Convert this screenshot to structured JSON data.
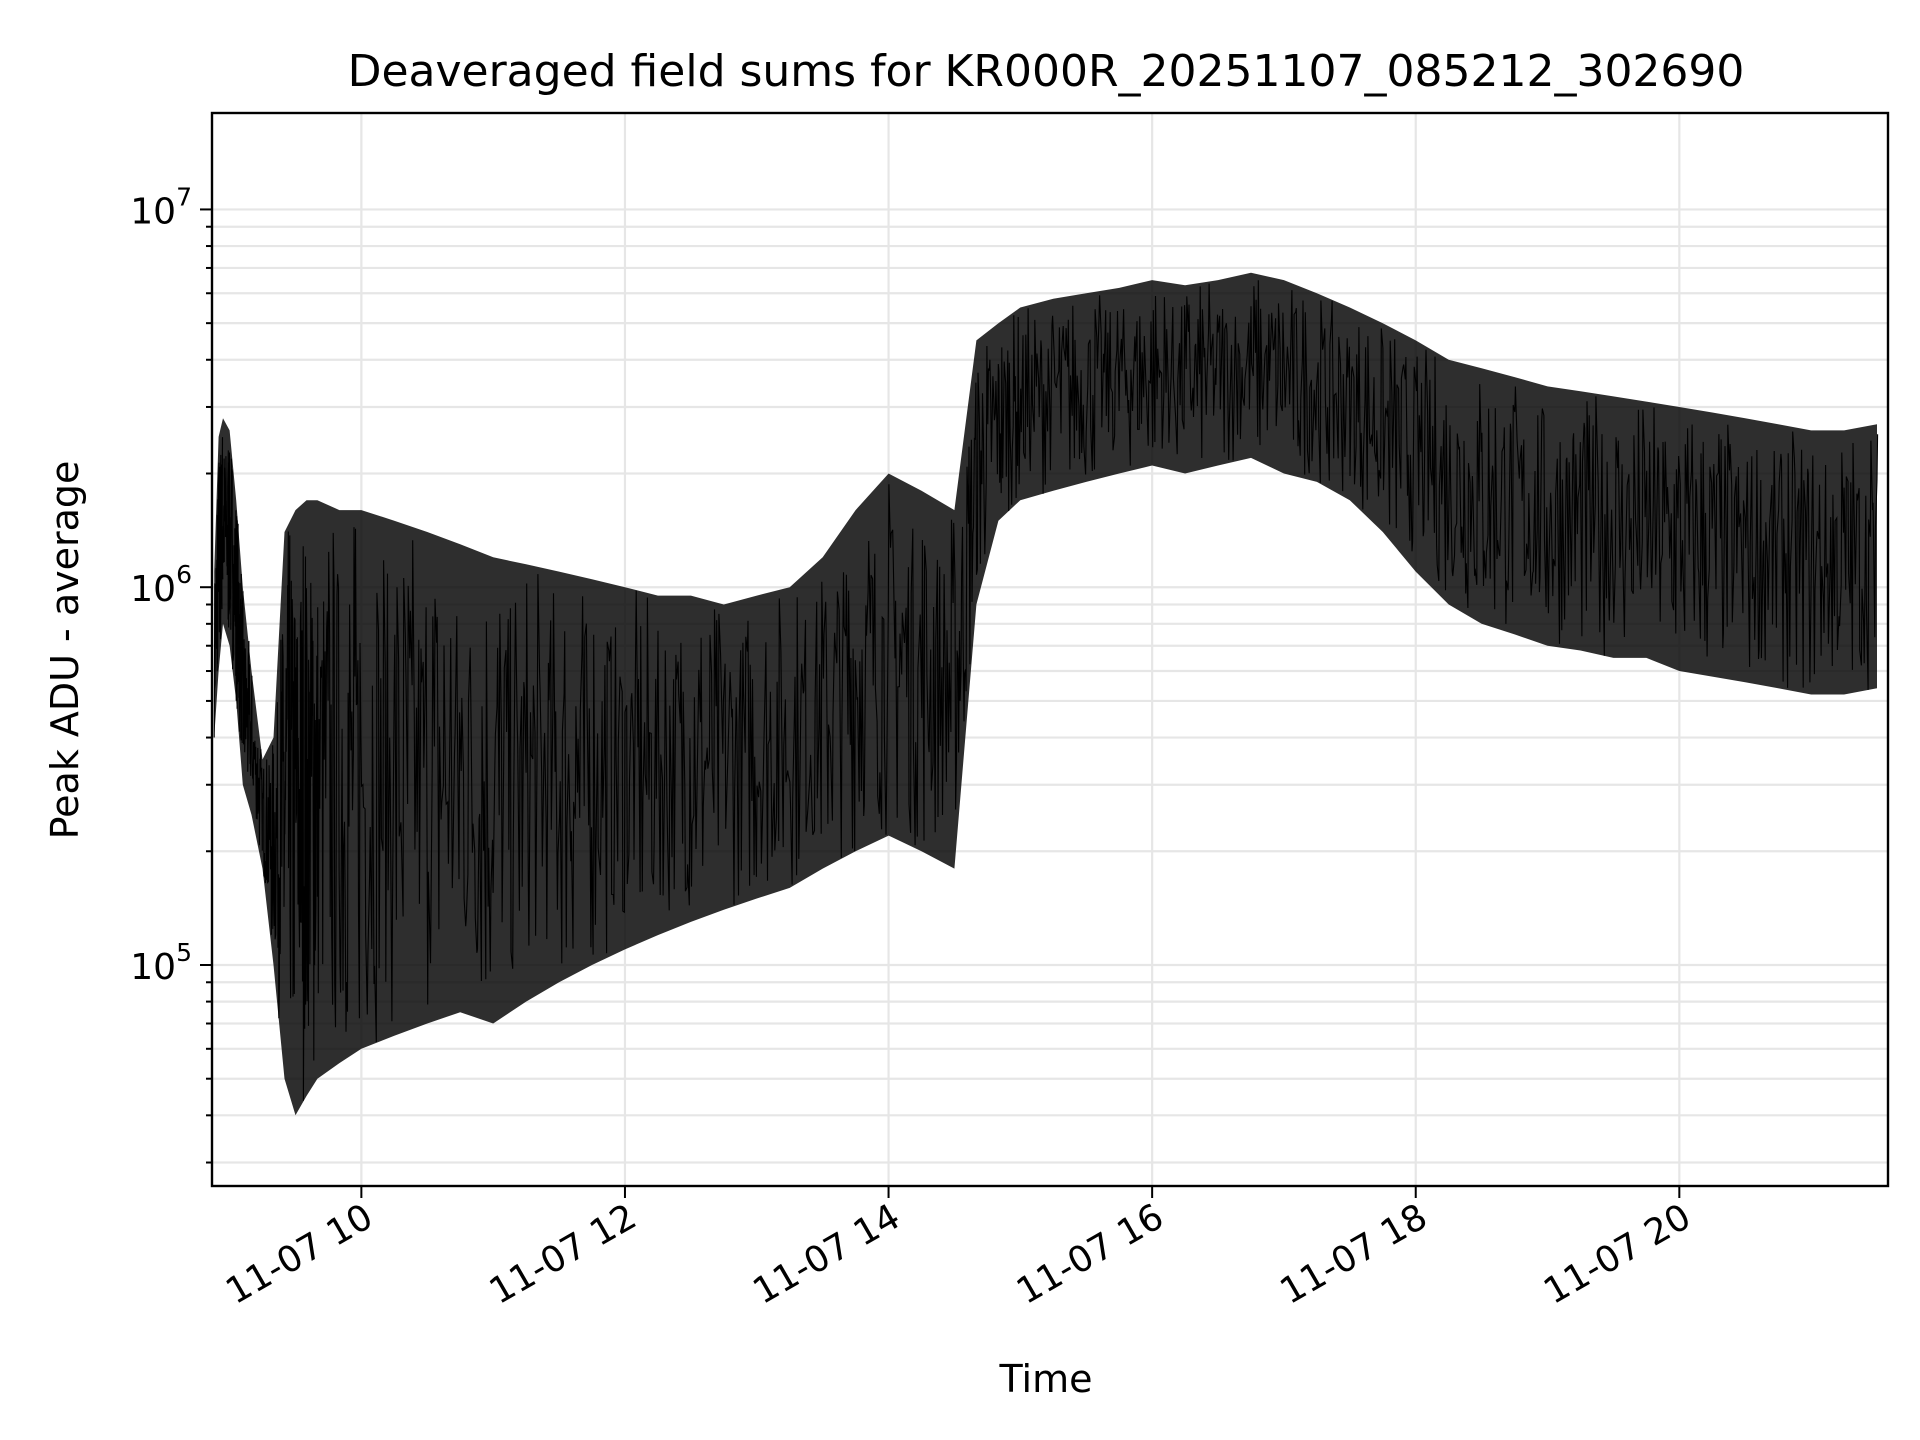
{
  "chart_data": {
    "type": "line",
    "title": "Deaveraged field sums for KR000R_20251107_085212_302690",
    "xlabel": "Time",
    "ylabel": "Peak ADU - average",
    "y_scale": "log",
    "ylim": [
      26000,
      18000000
    ],
    "xlim": [
      "2025-11-07 08:52",
      "2025-11-07 21:35"
    ],
    "grid": true,
    "line_color": "#000000",
    "x_ticks": [
      {
        "value": "2025-11-07 10:00",
        "label": "11-07 10"
      },
      {
        "value": "2025-11-07 12:00",
        "label": "11-07 12"
      },
      {
        "value": "2025-11-07 14:00",
        "label": "11-07 14"
      },
      {
        "value": "2025-11-07 16:00",
        "label": "11-07 16"
      },
      {
        "value": "2025-11-07 18:00",
        "label": "11-07 18"
      },
      {
        "value": "2025-11-07 20:00",
        "label": "11-07 20"
      }
    ],
    "y_ticks": [
      {
        "value": 100000,
        "base": "10",
        "exp": "5"
      },
      {
        "value": 1000000,
        "base": "10",
        "exp": "6"
      },
      {
        "value": 10000000,
        "base": "10",
        "exp": "7"
      }
    ],
    "series": [
      {
        "x": [
          "2025-11-07 08:53",
          "2025-11-07 08:55",
          "2025-11-07 08:57",
          "2025-11-07 09:00",
          "2025-11-07 09:03",
          "2025-11-07 09:06",
          "2025-11-07 09:10",
          "2025-11-07 09:15",
          "2025-11-07 09:20",
          "2025-11-07 09:25",
          "2025-11-07 09:30",
          "2025-11-07 09:35",
          "2025-11-07 09:40",
          "2025-11-07 09:50",
          "2025-11-07 10:00",
          "2025-11-07 10:15",
          "2025-11-07 10:30",
          "2025-11-07 10:45",
          "2025-11-07 11:00",
          "2025-11-07 11:15",
          "2025-11-07 11:30",
          "2025-11-07 11:45",
          "2025-11-07 12:00",
          "2025-11-07 12:15",
          "2025-11-07 12:30",
          "2025-11-07 12:45",
          "2025-11-07 13:00",
          "2025-11-07 13:15",
          "2025-11-07 13:30",
          "2025-11-07 13:45",
          "2025-11-07 14:00",
          "2025-11-07 14:15",
          "2025-11-07 14:30",
          "2025-11-07 14:40",
          "2025-11-07 14:50",
          "2025-11-07 15:00",
          "2025-11-07 15:15",
          "2025-11-07 15:30",
          "2025-11-07 15:45",
          "2025-11-07 16:00",
          "2025-11-07 16:15",
          "2025-11-07 16:30",
          "2025-11-07 16:45",
          "2025-11-07 17:00",
          "2025-11-07 17:15",
          "2025-11-07 17:30",
          "2025-11-07 17:45",
          "2025-11-07 18:00",
          "2025-11-07 18:15",
          "2025-11-07 18:30",
          "2025-11-07 18:45",
          "2025-11-07 19:00",
          "2025-11-07 19:15",
          "2025-11-07 19:30",
          "2025-11-07 19:45",
          "2025-11-07 20:00",
          "2025-11-07 20:15",
          "2025-11-07 20:30",
          "2025-11-07 20:45",
          "2025-11-07 21:00",
          "2025-11-07 21:15",
          "2025-11-07 21:30"
        ],
        "y": [
          700000,
          1500000,
          1800000,
          1700000,
          1200000,
          700000,
          400000,
          250000,
          150000,
          90000,
          70000,
          220000,
          250000,
          300000,
          280000,
          320000,
          300000,
          280000,
          260000,
          270000,
          250000,
          280000,
          300000,
          320000,
          350000,
          330000,
          360000,
          380000,
          420000,
          480000,
          500000,
          470000,
          450000,
          2500000,
          3000000,
          3000000,
          3100000,
          3200000,
          3400000,
          3500000,
          3400000,
          3600000,
          3700000,
          3500000,
          3300000,
          3100000,
          2700000,
          2200000,
          1900000,
          1700000,
          1600000,
          1500000,
          1450000,
          1400000,
          1400000,
          1300000,
          1250000,
          1200000,
          1150000,
          1100000,
          1100000,
          1150000
        ],
        "y_low": [
          400000,
          600000,
          800000,
          700000,
          500000,
          300000,
          250000,
          180000,
          100000,
          50000,
          40000,
          45000,
          50000,
          55000,
          60000,
          65000,
          70000,
          75000,
          70000,
          80000,
          90000,
          100000,
          110000,
          120000,
          130000,
          140000,
          150000,
          160000,
          180000,
          200000,
          220000,
          200000,
          180000,
          900000,
          1500000,
          1700000,
          1800000,
          1900000,
          2000000,
          2100000,
          2000000,
          2100000,
          2200000,
          2000000,
          1900000,
          1700000,
          1400000,
          1100000,
          900000,
          800000,
          750000,
          700000,
          680000,
          650000,
          650000,
          600000,
          580000,
          560000,
          540000,
          520000,
          520000,
          540000
        ],
        "y_high": [
          1100000,
          2500000,
          2800000,
          2600000,
          1700000,
          1000000,
          600000,
          350000,
          400000,
          1400000,
          1600000,
          1700000,
          1700000,
          1600000,
          1600000,
          1500000,
          1400000,
          1300000,
          1200000,
          1150000,
          1100000,
          1050000,
          1000000,
          950000,
          950000,
          900000,
          950000,
          1000000,
          1200000,
          1600000,
          2000000,
          1800000,
          1600000,
          4500000,
          5000000,
          5500000,
          5800000,
          6000000,
          6200000,
          6500000,
          6300000,
          6500000,
          6800000,
          6500000,
          6000000,
          5500000,
          5000000,
          4500000,
          4000000,
          3800000,
          3600000,
          3400000,
          3300000,
          3200000,
          3100000,
          3000000,
          2900000,
          2800000,
          2700000,
          2600000,
          2600000,
          2700000
        ]
      }
    ]
  }
}
